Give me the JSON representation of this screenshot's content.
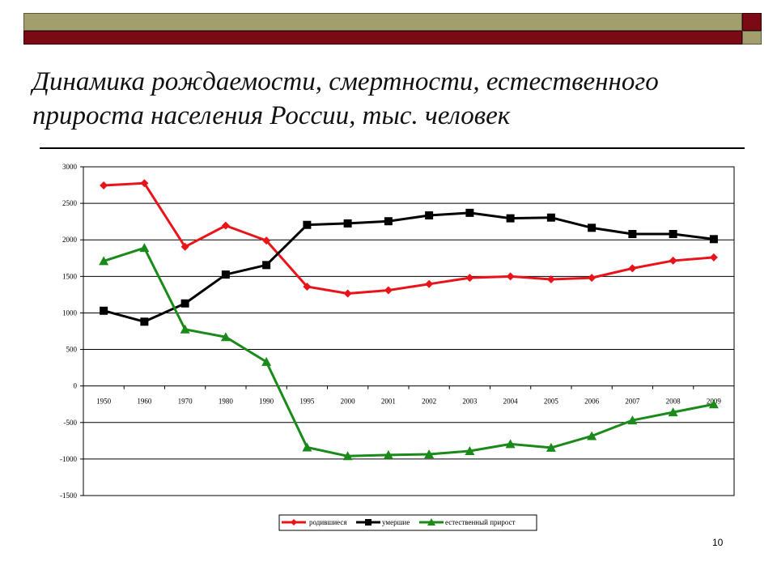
{
  "slide": {
    "title_line1": "Динамика рождаемости, смертности, естественного",
    "title_line2": "прироста населения России, тыс. человек",
    "page_number": "10"
  },
  "colors": {
    "band_olive": "#a39e6d",
    "band_maroon": "#7a0a14",
    "births": "#e8141a",
    "deaths": "#000000",
    "natural_growth": "#1a8a1a"
  },
  "chart_data": {
    "type": "line",
    "categories": [
      "1950",
      "1960",
      "1970",
      "1980",
      "1990",
      "1995",
      "2000",
      "2001",
      "2002",
      "2003",
      "2004",
      "2005",
      "2006",
      "2007",
      "2008",
      "2009"
    ],
    "ylim": [
      -1500,
      3000
    ],
    "yticks": [
      "3000",
      "2500",
      "2000",
      "1500",
      "1000",
      "500",
      "0",
      "-500",
      "-1000",
      "-1500"
    ],
    "ytick_values": [
      3000,
      2500,
      2000,
      1500,
      1000,
      500,
      0,
      -500,
      -1000,
      -1500
    ],
    "grid": true,
    "legend_position": "bottom",
    "series": [
      {
        "name": "родившиеся",
        "marker": "diamond",
        "color": "#e8141a",
        "values": [
          2745,
          2775,
          1905,
          2195,
          1990,
          1360,
          1265,
          1310,
          1395,
          1480,
          1500,
          1460,
          1480,
          1610,
          1715,
          1760
        ]
      },
      {
        "name": "умершие",
        "marker": "square",
        "color": "#000000",
        "values": [
          1030,
          880,
          1130,
          1525,
          1655,
          2205,
          2225,
          2255,
          2335,
          2370,
          2295,
          2305,
          2165,
          2080,
          2080,
          2010
        ]
      },
      {
        "name": "естественный прирост",
        "marker": "triangle",
        "color": "#1a8a1a",
        "values": [
          1710,
          1890,
          775,
          670,
          330,
          -840,
          -960,
          -945,
          -935,
          -890,
          -795,
          -845,
          -685,
          -470,
          -360,
          -250
        ]
      }
    ]
  }
}
